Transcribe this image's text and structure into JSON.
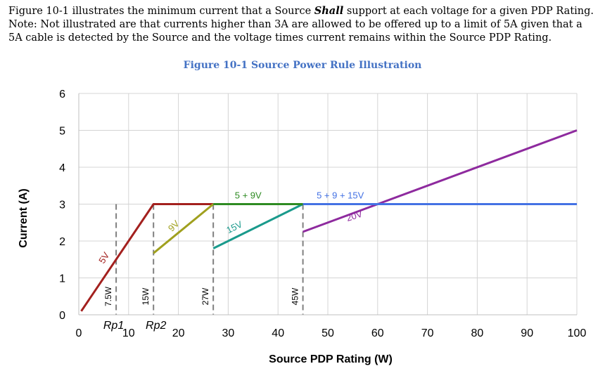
{
  "paragraph": {
    "part1": "Figure 10-1 illustrates the minimum current that a Source ",
    "shall": "Shall",
    "part2": " support at each voltage for a given PDP Rating.  Note: Not illustrated are that currents higher than 3A are allowed to be offered up to a limit of 5A given that a 5A cable is detected by the Source and the voltage times current remains within the Source PDP Rating."
  },
  "figure_title": "Figure 10-1 Source Power Rule Illustration",
  "chart_data": {
    "type": "line",
    "title": "",
    "xlabel": "Source PDP Rating (W)",
    "ylabel": "Current (A)",
    "xlim": [
      0,
      100
    ],
    "ylim": [
      0,
      6
    ],
    "xticks": [
      0,
      10,
      20,
      30,
      40,
      50,
      60,
      70,
      80,
      90,
      100
    ],
    "yticks": [
      0,
      1,
      2,
      3,
      4,
      5,
      6
    ],
    "grid": true,
    "series": [
      {
        "key": "s5v",
        "color": "#a3201e",
        "points": [
          [
            0.5,
            0.1
          ],
          [
            15,
            3
          ],
          [
            27,
            3
          ]
        ]
      },
      {
        "key": "s9v",
        "color": "#a0a01e",
        "points": [
          [
            15,
            1.67
          ],
          [
            27,
            3
          ]
        ]
      },
      {
        "key": "s15v",
        "color": "#1a9a8c",
        "points": [
          [
            27,
            1.8
          ],
          [
            45,
            3
          ]
        ]
      },
      {
        "key": "s20v",
        "color": "#8e2a9e",
        "points": [
          [
            45,
            2.25
          ],
          [
            100,
            5
          ]
        ]
      },
      {
        "key": "s5p9",
        "color": "#2e8b22",
        "points": [
          [
            27,
            3
          ],
          [
            45,
            3
          ]
        ]
      },
      {
        "key": "s5p9p15",
        "color": "#4472e4",
        "points": [
          [
            45,
            3
          ],
          [
            100,
            3
          ]
        ]
      }
    ],
    "annotations": [
      {
        "text": "5V",
        "x": 5.6,
        "y": 1.5,
        "angle": -58,
        "color": "#a3201e"
      },
      {
        "text": "9V",
        "x": 19.5,
        "y": 2.35,
        "angle": -45,
        "color": "#a0a01e"
      },
      {
        "text": "15V",
        "x": 31.5,
        "y": 2.3,
        "angle": -26,
        "color": "#1a9a8c"
      },
      {
        "text": "20V",
        "x": 55.5,
        "y": 2.6,
        "angle": -18,
        "color": "#8e2a9e"
      },
      {
        "text": "5 + 9V",
        "x": 34,
        "y": 3.15,
        "angle": 0,
        "color": "#2e8b22"
      },
      {
        "text": "5 + 9 + 15V",
        "x": 52.5,
        "y": 3.15,
        "angle": 0,
        "color": "#4472e4"
      }
    ],
    "dashed_markers": [
      {
        "x": 7.5,
        "label": "7.5W"
      },
      {
        "x": 15,
        "label": "15W"
      },
      {
        "x": 27,
        "label": "27W"
      },
      {
        "x": 45,
        "label": "45W"
      }
    ],
    "below_axis_labels": [
      {
        "text": "Rp1",
        "x": 7
      },
      {
        "text": "Rp2",
        "x": 15.5
      }
    ]
  }
}
